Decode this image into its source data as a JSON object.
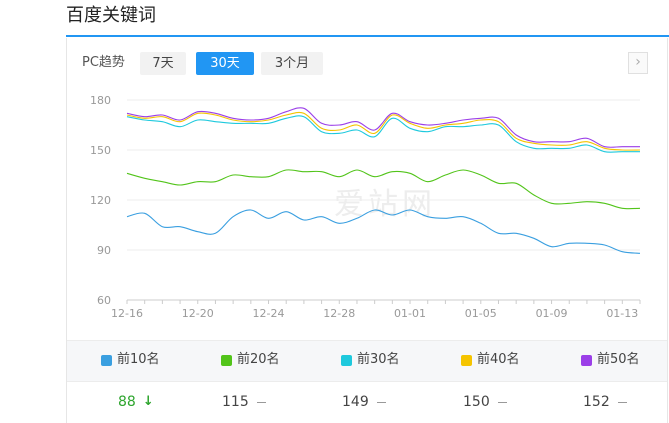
{
  "header": {
    "title": "百度关键词"
  },
  "toolbar": {
    "pc_label": "PC趋势",
    "ranges": [
      "7天",
      "30天",
      "3个月"
    ],
    "active_range": "30天",
    "next_icon": "chevron-right-icon"
  },
  "watermark": "爱站网",
  "colors": {
    "accent": "#2196f3",
    "top10": "#3a9fe0",
    "top20": "#52c41a",
    "top30": "#1ec9dd",
    "top40": "#f5c400",
    "top50": "#9b3fe8",
    "down": "#2ea52e"
  },
  "chart_data": {
    "type": "line",
    "x": [
      "12-16",
      "12-17",
      "12-18",
      "12-19",
      "12-20",
      "12-21",
      "12-22",
      "12-23",
      "12-24",
      "12-25",
      "12-26",
      "12-27",
      "12-28",
      "12-29",
      "12-30",
      "12-31",
      "01-01",
      "01-02",
      "01-03",
      "01-04",
      "01-05",
      "01-06",
      "01-07",
      "01-08",
      "01-09",
      "01-10",
      "01-11",
      "01-12",
      "01-13",
      "01-14"
    ],
    "xticks": [
      "12-16",
      "12-20",
      "12-24",
      "12-28",
      "01-01",
      "01-05",
      "01-09",
      "01-13"
    ],
    "ylim": [
      60,
      180
    ],
    "yticks": [
      60,
      90,
      120,
      150,
      180
    ],
    "grid": true,
    "series": [
      {
        "name": "前50名",
        "color": "#9b3fe8",
        "values": [
          172,
          170,
          171,
          168,
          173,
          172,
          169,
          168,
          169,
          173,
          175,
          166,
          165,
          167,
          162,
          172,
          167,
          165,
          166,
          168,
          169,
          169,
          159,
          155,
          155,
          155,
          157,
          152,
          152,
          152
        ]
      },
      {
        "name": "前40名",
        "color": "#f5c400",
        "values": [
          171,
          169,
          170,
          167,
          172,
          171,
          168,
          167,
          168,
          171,
          172,
          163,
          162,
          165,
          160,
          171,
          166,
          163,
          165,
          166,
          168,
          167,
          157,
          154,
          153,
          153,
          155,
          151,
          150,
          150
        ]
      },
      {
        "name": "前30名",
        "color": "#1ec9dd",
        "values": [
          170,
          168,
          167,
          164,
          168,
          167,
          166,
          166,
          166,
          169,
          170,
          161,
          160,
          162,
          158,
          169,
          163,
          161,
          164,
          164,
          165,
          165,
          155,
          151,
          151,
          151,
          153,
          149,
          149,
          149
        ]
      },
      {
        "name": "前20名",
        "color": "#52c41a",
        "values": [
          136,
          133,
          131,
          129,
          131,
          131,
          135,
          134,
          134,
          138,
          137,
          137,
          134,
          138,
          134,
          137,
          136,
          131,
          135,
          138,
          135,
          130,
          130,
          123,
          118,
          118,
          119,
          118,
          115,
          115
        ]
      },
      {
        "name": "前10名",
        "color": "#3a9fe0",
        "values": [
          110,
          112,
          104,
          104,
          101,
          100,
          110,
          114,
          109,
          113,
          108,
          110,
          106,
          109,
          114,
          111,
          114,
          110,
          109,
          110,
          106,
          100,
          100,
          97,
          92,
          94,
          94,
          93,
          89,
          88
        ]
      }
    ]
  },
  "legend": [
    {
      "label": "前10名",
      "color": "#3a9fe0"
    },
    {
      "label": "前20名",
      "color": "#52c41a"
    },
    {
      "label": "前30名",
      "color": "#1ec9dd"
    },
    {
      "label": "前40名",
      "color": "#f5c400"
    },
    {
      "label": "前50名",
      "color": "#9b3fe8"
    }
  ],
  "ranks": [
    {
      "value": "88",
      "trend": "down",
      "color": "#2ea52e"
    },
    {
      "value": "115",
      "trend": "flat",
      "color": "#444"
    },
    {
      "value": "149",
      "trend": "flat",
      "color": "#444"
    },
    {
      "value": "150",
      "trend": "flat",
      "color": "#444"
    },
    {
      "value": "152",
      "trend": "flat",
      "color": "#444"
    }
  ]
}
